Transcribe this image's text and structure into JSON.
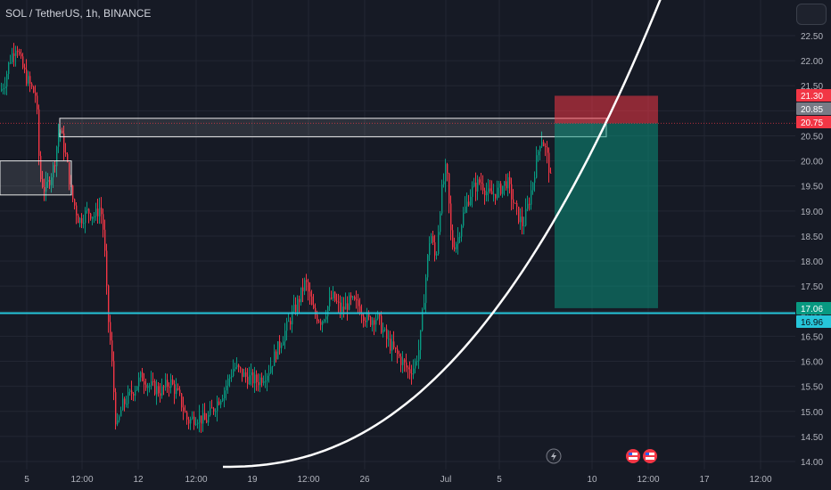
{
  "header": {
    "title": "SOL / TetherUS, 1h, BINANCE"
  },
  "price_axis": {
    "ticks": [
      "22.50",
      "22.00",
      "21.50",
      "21.00",
      "20.50",
      "20.00",
      "19.50",
      "19.00",
      "18.50",
      "18.00",
      "17.50",
      "17.00",
      "16.50",
      "16.00",
      "15.50",
      "15.00",
      "14.50",
      "14.00"
    ],
    "tags": [
      {
        "label": "21.30",
        "color": "#f23645"
      },
      {
        "label": "20.85",
        "color": "#787b86"
      },
      {
        "label": "20.75",
        "color": "#f23645"
      },
      {
        "label": "17.06",
        "color": "#089981"
      },
      {
        "label": "16.96",
        "color": "#26c6da"
      }
    ]
  },
  "time_axis": {
    "labels": [
      "5",
      "12:00",
      "12",
      "12:00",
      "19",
      "12:00",
      "26",
      "Jul",
      "5",
      "10",
      "12:00",
      "17",
      "12:00"
    ]
  },
  "colors": {
    "up": "#089981",
    "down": "#f23645",
    "background": "#161a25",
    "grid": "#232733",
    "hline": "#26c6da",
    "stop": "#f23645",
    "target": "#089981"
  },
  "events": [
    {
      "icon": "lightning-icon"
    },
    {
      "icon": "us-flag-icon"
    },
    {
      "icon": "us-flag-icon"
    }
  ],
  "chart_data": {
    "type": "candlestick",
    "symbol": "SOL / TetherUS",
    "interval": "1h",
    "exchange": "BINANCE",
    "ylim": [
      14.0,
      22.5
    ],
    "path": [
      {
        "t": 0,
        "p": 21.4
      },
      {
        "t": 5,
        "p": 21.6
      },
      {
        "t": 10,
        "p": 22.0
      },
      {
        "t": 18,
        "p": 22.35
      },
      {
        "t": 22,
        "p": 22.0
      },
      {
        "t": 28,
        "p": 21.7
      },
      {
        "t": 36,
        "p": 21.4
      },
      {
        "t": 40,
        "p": 21.3
      },
      {
        "t": 44,
        "p": 19.7
      },
      {
        "t": 50,
        "p": 19.4
      },
      {
        "t": 60,
        "p": 19.9
      },
      {
        "t": 66,
        "p": 20.7
      },
      {
        "t": 74,
        "p": 20.0
      },
      {
        "t": 80,
        "p": 19.3
      },
      {
        "t": 88,
        "p": 18.8
      },
      {
        "t": 98,
        "p": 19.0
      },
      {
        "t": 106,
        "p": 18.9
      },
      {
        "t": 112,
        "p": 19.1
      },
      {
        "t": 116,
        "p": 18.5
      },
      {
        "t": 120,
        "p": 17.0
      },
      {
        "t": 124,
        "p": 16.2
      },
      {
        "t": 130,
        "p": 14.6
      },
      {
        "t": 136,
        "p": 15.1
      },
      {
        "t": 148,
        "p": 15.4
      },
      {
        "t": 158,
        "p": 15.7
      },
      {
        "t": 168,
        "p": 15.5
      },
      {
        "t": 180,
        "p": 15.4
      },
      {
        "t": 190,
        "p": 15.6
      },
      {
        "t": 200,
        "p": 15.3
      },
      {
        "t": 210,
        "p": 14.8
      },
      {
        "t": 220,
        "p": 14.9
      },
      {
        "t": 230,
        "p": 14.8
      },
      {
        "t": 240,
        "p": 15.1
      },
      {
        "t": 250,
        "p": 15.4
      },
      {
        "t": 262,
        "p": 15.9
      },
      {
        "t": 274,
        "p": 15.7
      },
      {
        "t": 288,
        "p": 15.6
      },
      {
        "t": 300,
        "p": 15.8
      },
      {
        "t": 312,
        "p": 16.3
      },
      {
        "t": 324,
        "p": 16.8
      },
      {
        "t": 334,
        "p": 17.2
      },
      {
        "t": 342,
        "p": 17.6
      },
      {
        "t": 350,
        "p": 17.0
      },
      {
        "t": 360,
        "p": 16.8
      },
      {
        "t": 372,
        "p": 17.3
      },
      {
        "t": 382,
        "p": 17.0
      },
      {
        "t": 392,
        "p": 17.2
      },
      {
        "t": 402,
        "p": 17.1
      },
      {
        "t": 412,
        "p": 16.8
      },
      {
        "t": 422,
        "p": 16.9
      },
      {
        "t": 434,
        "p": 16.4
      },
      {
        "t": 446,
        "p": 16.1
      },
      {
        "t": 458,
        "p": 15.8
      },
      {
        "t": 464,
        "p": 15.9
      },
      {
        "t": 470,
        "p": 16.3
      },
      {
        "t": 476,
        "p": 17.5
      },
      {
        "t": 482,
        "p": 18.6
      },
      {
        "t": 488,
        "p": 18.0
      },
      {
        "t": 494,
        "p": 19.3
      },
      {
        "t": 500,
        "p": 19.9
      },
      {
        "t": 506,
        "p": 18.3
      },
      {
        "t": 512,
        "p": 18.4
      },
      {
        "t": 520,
        "p": 19.0
      },
      {
        "t": 528,
        "p": 19.4
      },
      {
        "t": 538,
        "p": 19.6
      },
      {
        "t": 548,
        "p": 19.3
      },
      {
        "t": 558,
        "p": 19.4
      },
      {
        "t": 568,
        "p": 19.6
      },
      {
        "t": 578,
        "p": 19.0
      },
      {
        "t": 586,
        "p": 18.7
      },
      {
        "t": 594,
        "p": 19.3
      },
      {
        "t": 600,
        "p": 19.9
      },
      {
        "t": 606,
        "p": 20.5
      },
      {
        "t": 610,
        "p": 20.3
      },
      {
        "t": 614,
        "p": 20.0
      },
      {
        "t": 618,
        "p": 19.5
      }
    ],
    "annotations": [
      {
        "type": "rectangle",
        "label": "supply-zone-upper",
        "from": {
          "t": 67,
          "p": 20.85
        },
        "to": {
          "t": 680,
          "p": 20.48
        }
      },
      {
        "type": "rectangle",
        "label": "supply-zone-left",
        "from": {
          "t": 0,
          "p": 20.0
        },
        "to": {
          "t": 80,
          "p": 19.32
        }
      },
      {
        "type": "short-position",
        "entry": 20.75,
        "stop": 21.3,
        "target": 17.06,
        "from_t": 622,
        "to_t": 738
      },
      {
        "type": "horizontal-line",
        "price": 16.96
      },
      {
        "type": "horizontal-line",
        "price": 20.75,
        "style": "dotted"
      },
      {
        "type": "parabolic-curve"
      }
    ]
  }
}
